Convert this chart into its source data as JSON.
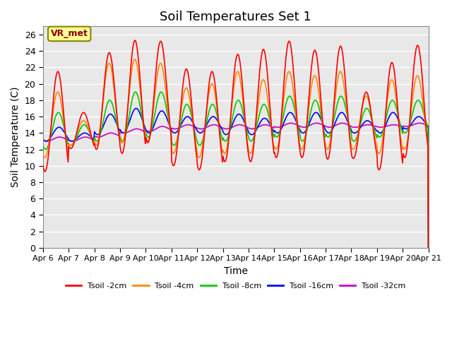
{
  "title": "Soil Temperatures Set 1",
  "xlabel": "Time",
  "ylabel": "Soil Temperature (C)",
  "ylim": [
    0,
    27
  ],
  "yticks": [
    0,
    2,
    4,
    6,
    8,
    10,
    12,
    14,
    16,
    18,
    20,
    22,
    24,
    26
  ],
  "x_labels": [
    "Apr 6",
    "Apr 7",
    "Apr 8",
    "Apr 9",
    "Apr 10",
    "Apr 11",
    "Apr 12",
    "Apr 13",
    "Apr 14",
    "Apr 15",
    "Apr 16",
    "Apr 17",
    "Apr 18",
    "Apr 19",
    "Apr 20",
    "Apr 21"
  ],
  "annotation_text": "VR_met",
  "series_colors": [
    "#ff0000",
    "#ff8800",
    "#00cc00",
    "#0000ff",
    "#cc00cc"
  ],
  "series_labels": [
    "Tsoil -2cm",
    "Tsoil -4cm",
    "Tsoil -8cm",
    "Tsoil -16cm",
    "Tsoil -32cm"
  ],
  "background_color": "#e8e8e8",
  "grid_color": "#ffffff",
  "title_fontsize": 13,
  "axis_fontsize": 10,
  "tick_fontsize": 9,
  "day_peaks_2cm": [
    21.5,
    16.5,
    23.8,
    25.3,
    25.2,
    21.8,
    21.5,
    23.6,
    24.2,
    25.2,
    24.1,
    24.6,
    19.0,
    22.6,
    24.7
  ],
  "day_mins_2cm": [
    9.3,
    12.1,
    12.0,
    11.5,
    12.8,
    10.0,
    9.5,
    10.5,
    10.5,
    11.0,
    11.0,
    10.8,
    10.9,
    9.5,
    11.0
  ],
  "day_peaks_4cm": [
    19.0,
    15.5,
    22.5,
    23.0,
    22.5,
    19.5,
    20.0,
    21.5,
    20.5,
    21.5,
    21.0,
    21.5,
    18.5,
    20.5,
    21.0
  ],
  "day_mins_4cm": [
    11.0,
    12.5,
    12.5,
    12.8,
    13.0,
    11.5,
    11.0,
    11.5,
    11.5,
    12.0,
    12.0,
    12.0,
    12.0,
    11.5,
    12.0
  ],
  "day_peaks_8cm": [
    16.5,
    15.0,
    18.0,
    19.0,
    19.0,
    17.5,
    17.5,
    18.0,
    17.5,
    18.5,
    18.0,
    18.5,
    17.0,
    18.0,
    18.0
  ],
  "day_mins_8cm": [
    12.0,
    12.5,
    13.0,
    13.0,
    13.5,
    12.5,
    12.5,
    13.0,
    13.0,
    13.5,
    13.0,
    13.5,
    13.0,
    13.5,
    14.0
  ],
  "day_peaks_16cm": [
    14.7,
    14.0,
    16.3,
    17.0,
    16.7,
    16.0,
    16.0,
    16.3,
    15.8,
    16.5,
    16.5,
    16.5,
    15.5,
    16.5,
    16.0
  ],
  "day_mins_16cm": [
    13.0,
    13.0,
    13.8,
    14.0,
    14.0,
    14.0,
    14.0,
    13.8,
    13.8,
    14.0,
    14.0,
    14.0,
    14.0,
    14.0,
    14.5
  ],
  "day_peaks_32cm": [
    13.5,
    13.5,
    14.0,
    14.5,
    14.8,
    15.0,
    15.0,
    15.0,
    15.0,
    15.2,
    15.2,
    15.2,
    15.0,
    15.0,
    15.2
  ],
  "day_mins_32cm": [
    13.0,
    13.0,
    13.5,
    14.0,
    14.2,
    14.5,
    14.5,
    14.5,
    14.5,
    14.7,
    14.7,
    14.7,
    14.7,
    14.7,
    14.8
  ]
}
